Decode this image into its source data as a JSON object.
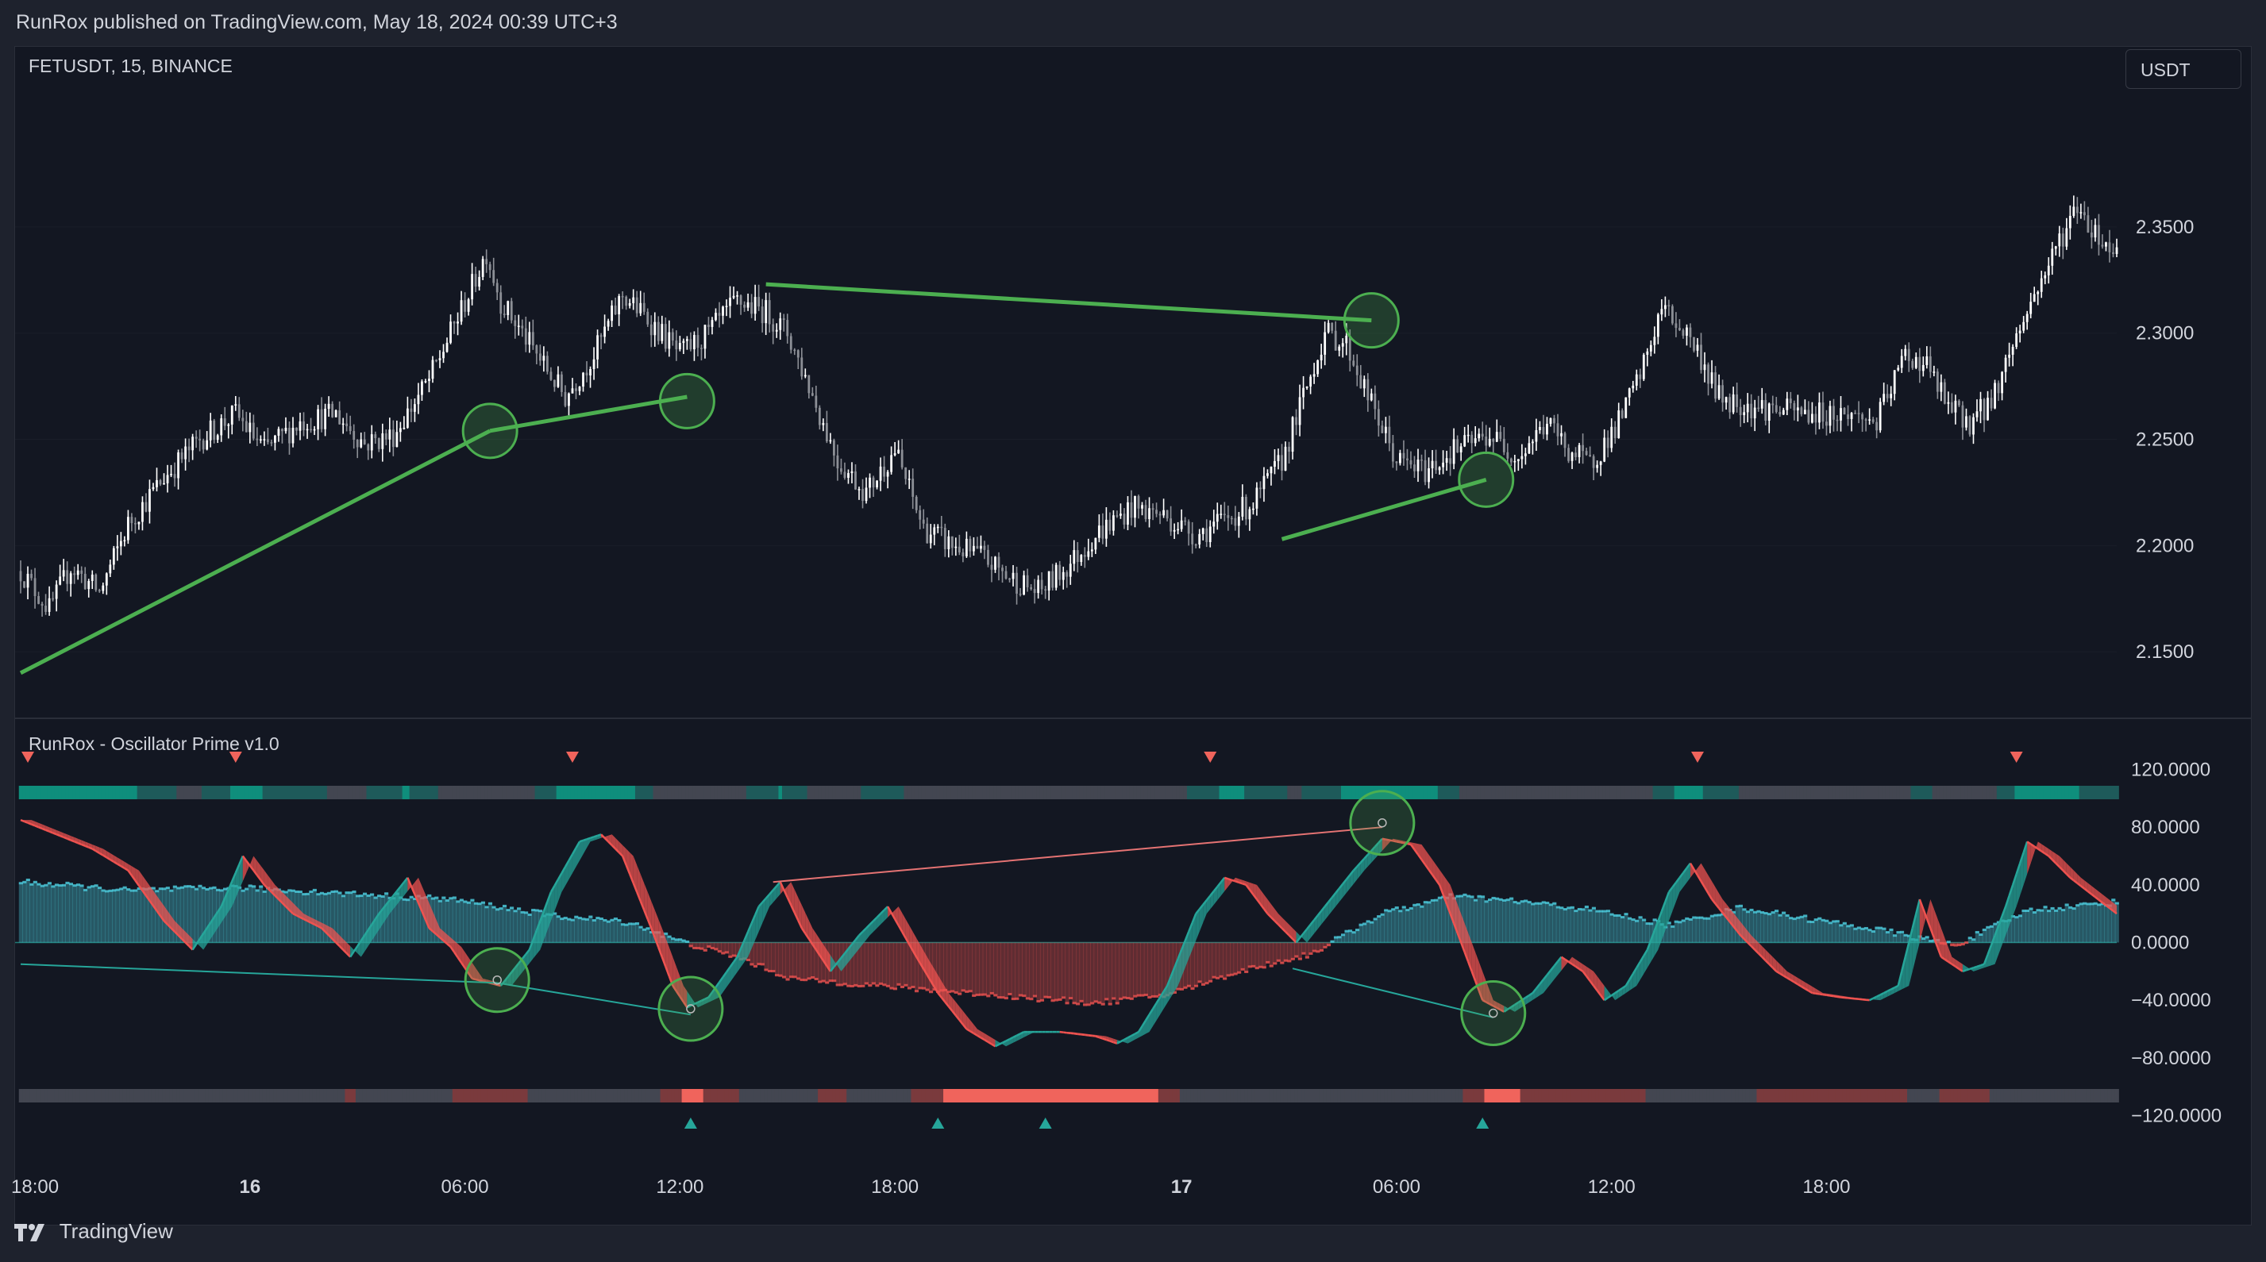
{
  "header": {
    "published": "RunRox published on TradingView.com, May 18, 2024 00:39 UTC+3"
  },
  "symbol": "FETUSDT, 15, BINANCE",
  "currency_button": "USDT",
  "indicator_title": "RunRox - Oscillator Prime v1.0",
  "footer": {
    "brand": "TradingView"
  },
  "colors": {
    "background": "#131722",
    "bull": "#ffffff",
    "bear": "#8c8f96",
    "accent_green": "#4caf50",
    "teal": "#26a69a",
    "red": "#ef5350",
    "cyan": "#4dd0e1"
  },
  "chart_data": [
    {
      "type": "candlestick",
      "title": "",
      "price_axis": {
        "ticks": [
          "2.3500",
          "2.3000",
          "2.2500",
          "2.2000",
          "2.1500"
        ],
        "ylim": [
          2.128,
          2.412
        ]
      },
      "time_axis": {
        "ticks": [
          "18:00",
          "16",
          "06:00",
          "12:00",
          "18:00",
          "17",
          "06:00",
          "12:00",
          "18:00"
        ]
      },
      "anchors": [
        [
          0,
          2.188
        ],
        [
          8,
          2.17
        ],
        [
          14,
          2.19
        ],
        [
          22,
          2.178
        ],
        [
          30,
          2.21
        ],
        [
          40,
          2.232
        ],
        [
          50,
          2.25
        ],
        [
          60,
          2.262
        ],
        [
          68,
          2.245
        ],
        [
          78,
          2.258
        ],
        [
          88,
          2.262
        ],
        [
          96,
          2.248
        ],
        [
          104,
          2.252
        ],
        [
          114,
          2.278
        ],
        [
          120,
          2.3
        ],
        [
          126,
          2.322
        ],
        [
          130,
          2.338
        ],
        [
          134,
          2.315
        ],
        [
          140,
          2.3
        ],
        [
          146,
          2.285
        ],
        [
          152,
          2.27
        ],
        [
          160,
          2.29
        ],
        [
          168,
          2.318
        ],
        [
          176,
          2.305
        ],
        [
          184,
          2.29
        ],
        [
          192,
          2.3
        ],
        [
          200,
          2.315
        ],
        [
          208,
          2.31
        ],
        [
          214,
          2.3
        ],
        [
          220,
          2.275
        ],
        [
          228,
          2.24
        ],
        [
          236,
          2.225
        ],
        [
          244,
          2.245
        ],
        [
          252,
          2.208
        ],
        [
          260,
          2.2
        ],
        [
          268,
          2.195
        ],
        [
          276,
          2.185
        ],
        [
          284,
          2.178
        ],
        [
          292,
          2.19
        ],
        [
          300,
          2.205
        ],
        [
          310,
          2.218
        ],
        [
          318,
          2.215
        ],
        [
          328,
          2.205
        ],
        [
          336,
          2.212
        ],
        [
          344,
          2.22
        ],
        [
          352,
          2.24
        ],
        [
          358,
          2.27
        ],
        [
          364,
          2.3
        ],
        [
          370,
          2.295
        ],
        [
          376,
          2.27
        ],
        [
          384,
          2.24
        ],
        [
          392,
          2.235
        ],
        [
          400,
          2.245
        ],
        [
          410,
          2.252
        ],
        [
          418,
          2.242
        ],
        [
          426,
          2.258
        ],
        [
          432,
          2.245
        ],
        [
          438,
          2.238
        ],
        [
          446,
          2.258
        ],
        [
          452,
          2.28
        ],
        [
          458,
          2.312
        ],
        [
          466,
          2.298
        ],
        [
          474,
          2.27
        ],
        [
          482,
          2.266
        ],
        [
          490,
          2.264
        ],
        [
          500,
          2.262
        ],
        [
          510,
          2.262
        ],
        [
          518,
          2.258
        ],
        [
          526,
          2.29
        ],
        [
          532,
          2.285
        ],
        [
          538,
          2.265
        ],
        [
          544,
          2.258
        ],
        [
          550,
          2.268
        ],
        [
          556,
          2.295
        ],
        [
          562,
          2.318
        ],
        [
          568,
          2.34
        ],
        [
          574,
          2.36
        ],
        [
          580,
          2.345
        ],
        [
          585,
          2.338
        ]
      ],
      "trendlines": [
        {
          "from": [
            0,
            2.14
          ],
          "to": [
            131,
            2.254
          ]
        },
        {
          "from": [
            131,
            2.254
          ],
          "to": [
            186,
            2.27
          ]
        },
        {
          "from": [
            208,
            2.323
          ],
          "to": [
            377,
            2.306
          ]
        },
        {
          "from": [
            352,
            2.203
          ],
          "to": [
            409,
            2.231
          ]
        }
      ],
      "signal_circles": [
        [
          131,
          2.254
        ],
        [
          186,
          2.268
        ],
        [
          377,
          2.306
        ],
        [
          409,
          2.231
        ]
      ]
    },
    {
      "type": "oscillator",
      "title": "RunRox - Oscillator Prime v1.0",
      "ylim": [
        -128,
        128
      ],
      "ticks": [
        "120.0000",
        "80.0000",
        "40.0000",
        "0.0000",
        "−40.0000",
        "−80.0000",
        "−120.0000"
      ],
      "anchors": [
        [
          0,
          85
        ],
        [
          10,
          75
        ],
        [
          20,
          65
        ],
        [
          30,
          50
        ],
        [
          40,
          15
        ],
        [
          48,
          -5
        ],
        [
          56,
          25
        ],
        [
          62,
          60
        ],
        [
          68,
          40
        ],
        [
          76,
          20
        ],
        [
          84,
          10
        ],
        [
          92,
          -10
        ],
        [
          100,
          20
        ],
        [
          108,
          45
        ],
        [
          114,
          10
        ],
        [
          120,
          -3
        ],
        [
          126,
          -25
        ],
        [
          134,
          -30
        ],
        [
          142,
          -5
        ],
        [
          148,
          35
        ],
        [
          156,
          70
        ],
        [
          162,
          75
        ],
        [
          168,
          60
        ],
        [
          176,
          10
        ],
        [
          182,
          -30
        ],
        [
          186,
          -45
        ],
        [
          192,
          -38
        ],
        [
          200,
          -10
        ],
        [
          206,
          25
        ],
        [
          212,
          42
        ],
        [
          218,
          10
        ],
        [
          226,
          -20
        ],
        [
          234,
          5
        ],
        [
          242,
          25
        ],
        [
          250,
          -10
        ],
        [
          256,
          -35
        ],
        [
          264,
          -60
        ],
        [
          272,
          -72
        ],
        [
          280,
          -62
        ],
        [
          290,
          -62
        ],
        [
          300,
          -65
        ],
        [
          306,
          -70
        ],
        [
          312,
          -62
        ],
        [
          320,
          -30
        ],
        [
          328,
          20
        ],
        [
          336,
          45
        ],
        [
          342,
          40
        ],
        [
          348,
          20
        ],
        [
          356,
          0
        ],
        [
          364,
          25
        ],
        [
          372,
          50
        ],
        [
          380,
          72
        ],
        [
          388,
          68
        ],
        [
          396,
          40
        ],
        [
          402,
          0
        ],
        [
          408,
          -40
        ],
        [
          414,
          -48
        ],
        [
          422,
          -35
        ],
        [
          430,
          -10
        ],
        [
          436,
          -20
        ],
        [
          442,
          -40
        ],
        [
          448,
          -30
        ],
        [
          454,
          -5
        ],
        [
          460,
          35
        ],
        [
          466,
          55
        ],
        [
          472,
          30
        ],
        [
          480,
          5
        ],
        [
          490,
          -20
        ],
        [
          500,
          -35
        ],
        [
          508,
          -38
        ],
        [
          516,
          -40
        ],
        [
          524,
          -30
        ],
        [
          530,
          30
        ],
        [
          536,
          -10
        ],
        [
          542,
          -20
        ],
        [
          548,
          -15
        ],
        [
          554,
          25
        ],
        [
          560,
          70
        ],
        [
          566,
          60
        ],
        [
          572,
          45
        ],
        [
          585,
          20
        ]
      ],
      "wave_anchors": [
        [
          0,
          42
        ],
        [
          30,
          36
        ],
        [
          60,
          38
        ],
        [
          90,
          34
        ],
        [
          120,
          30
        ],
        [
          150,
          18
        ],
        [
          170,
          14
        ],
        [
          185,
          0
        ],
        [
          200,
          -10
        ],
        [
          215,
          -25
        ],
        [
          240,
          -30
        ],
        [
          270,
          -36
        ],
        [
          300,
          -42
        ],
        [
          320,
          -36
        ],
        [
          340,
          -20
        ],
        [
          360,
          -8
        ],
        [
          380,
          20
        ],
        [
          400,
          32
        ],
        [
          420,
          28
        ],
        [
          440,
          22
        ],
        [
          460,
          12
        ],
        [
          480,
          24
        ],
        [
          500,
          16
        ],
        [
          520,
          8
        ],
        [
          540,
          -2
        ],
        [
          560,
          22
        ],
        [
          585,
          28
        ]
      ],
      "divergence_lines": [
        {
          "from": [
            210,
            42
          ],
          "to": [
            380,
            80
          ],
          "color": "red"
        },
        {
          "from": [
            0,
            -15
          ],
          "to": [
            133,
            -28
          ],
          "color": "teal"
        },
        {
          "from": [
            133,
            -28
          ],
          "to": [
            187,
            -50
          ],
          "color": "teal"
        },
        {
          "from": [
            355,
            -18
          ],
          "to": [
            411,
            -52
          ],
          "color": "teal"
        }
      ],
      "signal_circles": [
        [
          380,
          83
        ],
        [
          133,
          -26
        ],
        [
          187,
          -46
        ],
        [
          411,
          -49
        ]
      ],
      "sell_arrows": [
        2,
        60,
        154,
        332,
        468,
        557
      ],
      "buy_arrows": [
        187,
        256,
        286,
        408
      ]
    }
  ]
}
